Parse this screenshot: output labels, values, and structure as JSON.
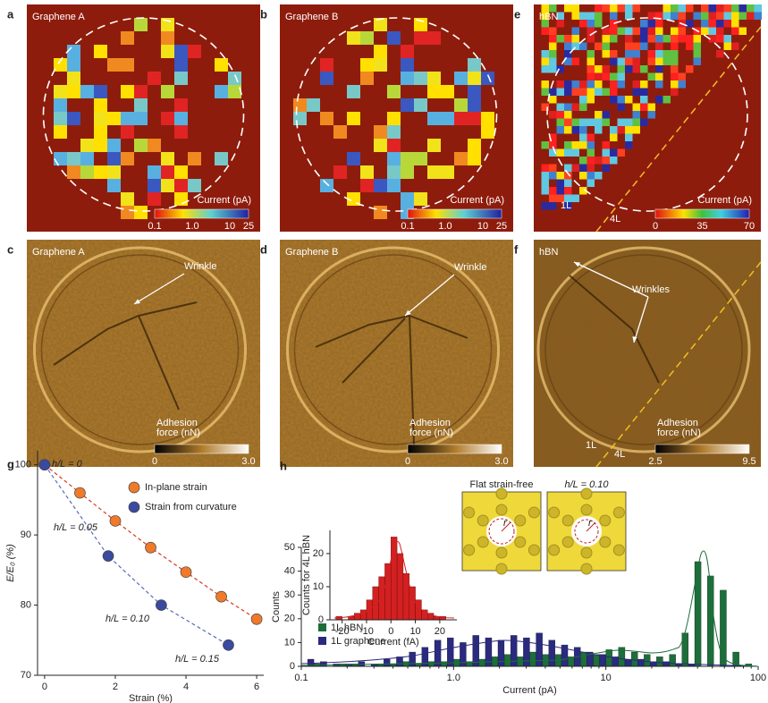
{
  "panels": [
    {
      "letter": "a",
      "title": "Graphene A",
      "colorbar_label": "Current (pA)",
      "colorbar_ticks": [
        "0.1",
        "1.0",
        "10",
        "25"
      ]
    },
    {
      "letter": "b",
      "title": "Graphene B",
      "colorbar_label": "Current (pA)",
      "colorbar_ticks": [
        "0.1",
        "1.0",
        "10",
        "25"
      ]
    },
    {
      "letter": "e",
      "title": "hBN",
      "colorbar_label": "Current (pA)",
      "colorbar_ticks": [
        "0",
        "35",
        "70"
      ],
      "region_labels": [
        "1L",
        "4L"
      ]
    },
    {
      "letter": "c",
      "title": "Graphene A",
      "annotation": "Wrinkle",
      "colorbar_label": [
        "Adhesion",
        "force (nN)"
      ],
      "colorbar_ticks": [
        "0",
        "3.0"
      ]
    },
    {
      "letter": "d",
      "title": "Graphene B",
      "annotation": "Wrinkle",
      "colorbar_label": [
        "Adhesion",
        "force (nN)"
      ],
      "colorbar_ticks": [
        "0",
        "3.0"
      ]
    },
    {
      "letter": "f",
      "title": "hBN",
      "annotation": "Wrinkles",
      "colorbar_label": [
        "Adhesion",
        "force (nN)"
      ],
      "colorbar_ticks": [
        "2.5",
        "9.5"
      ],
      "region_labels": [
        "1L",
        "4L"
      ]
    }
  ],
  "chart_data": [
    {
      "type": "scatter",
      "letter": "g",
      "xlabel": "Strain (%)",
      "ylabel": "E/E₀ (%)",
      "xlim": [
        -0.2,
        6.2
      ],
      "ylim": [
        70,
        102
      ],
      "xticks": [
        0,
        2,
        4,
        6
      ],
      "yticks": [
        70,
        80,
        90,
        100
      ],
      "series": [
        {
          "name": "In-plane strain",
          "color": "#f07a2a",
          "line_color": "#d83a22",
          "x": [
            0,
            1,
            2,
            3,
            4,
            5,
            6
          ],
          "values": [
            100,
            96,
            92,
            88.2,
            84.7,
            81.2,
            78
          ]
        },
        {
          "name": "Strain from curvature",
          "color": "#3a4aa0",
          "line_color": "#5a6ab8",
          "x": [
            0,
            1.8,
            3.3,
            5.2
          ],
          "values": [
            100,
            87,
            80,
            74.3
          ]
        }
      ],
      "annotations": [
        "h/L = 0",
        "h/L = 0.05",
        "h/L = 0.10",
        "h/L = 0.15"
      ]
    },
    {
      "type": "histogram",
      "letter": "h",
      "xlabel": "Current (pA)",
      "ylabel": "Counts",
      "log_x": true,
      "xlim": [
        0.1,
        100
      ],
      "ylim": [
        0,
        50
      ],
      "xticks": [
        0.1,
        {
          "value": 1,
          "label": "1.0"
        },
        10,
        100
      ],
      "yticks": [
        0,
        10,
        20,
        30,
        40,
        50
      ],
      "bins": [
        0.1,
        0.121,
        0.147,
        0.178,
        0.215,
        0.261,
        0.316,
        0.383,
        0.464,
        0.562,
        0.681,
        0.825,
        1.0,
        1.21,
        1.47,
        1.78,
        2.15,
        2.61,
        3.16,
        3.83,
        4.64,
        5.62,
        6.81,
        8.25,
        10,
        12.1,
        14.7,
        17.8,
        21.5,
        26.1,
        31.6,
        38.3,
        46.4,
        56.2,
        68.1,
        82.5,
        100
      ],
      "series": [
        {
          "name": "1L hBN",
          "color": "#1c6e3a",
          "values": [
            0,
            1,
            0,
            1,
            1,
            0,
            1,
            1,
            2,
            1,
            2,
            2,
            3,
            2,
            3,
            4,
            5,
            4,
            6,
            5,
            5,
            4,
            6,
            5,
            7,
            8,
            6,
            5,
            4,
            5,
            14,
            44,
            38,
            32,
            6,
            1
          ]
        },
        {
          "name": "1L graphene",
          "color": "#2a2a80",
          "values": [
            3,
            2,
            1,
            1,
            2,
            1,
            3,
            4,
            6,
            8,
            11,
            12,
            10,
            13,
            12,
            11,
            13,
            12,
            14,
            11,
            9,
            8,
            6,
            5,
            4,
            3,
            3,
            2,
            2,
            1,
            1,
            0,
            0,
            0,
            0,
            0
          ]
        }
      ],
      "structure_insets": [
        {
          "title": "Flat strain-free",
          "marker": "r"
        },
        {
          "title": "h/L = 0.10",
          "marker": "r"
        }
      ]
    },
    {
      "type": "histogram",
      "xlabel": "Current (fA)",
      "ylabel": "Counts for 4L hBN",
      "color": "#d42020",
      "xlim": [
        -25,
        27
      ],
      "ylim": [
        0,
        27
      ],
      "xticks": [
        -20,
        -10,
        0,
        10,
        20
      ],
      "yticks": [
        0,
        10,
        20
      ],
      "bins": [
        -22.5,
        -20,
        -17.5,
        -15,
        -12.5,
        -10,
        -7.5,
        -5,
        -2.5,
        0,
        2.5,
        5,
        7.5,
        10,
        12.5,
        15,
        17.5,
        20,
        22.5
      ],
      "values": [
        1,
        0,
        1,
        2,
        3,
        6,
        10,
        13,
        17,
        25,
        20,
        14,
        10,
        6,
        3,
        2,
        1,
        1
      ]
    }
  ]
}
